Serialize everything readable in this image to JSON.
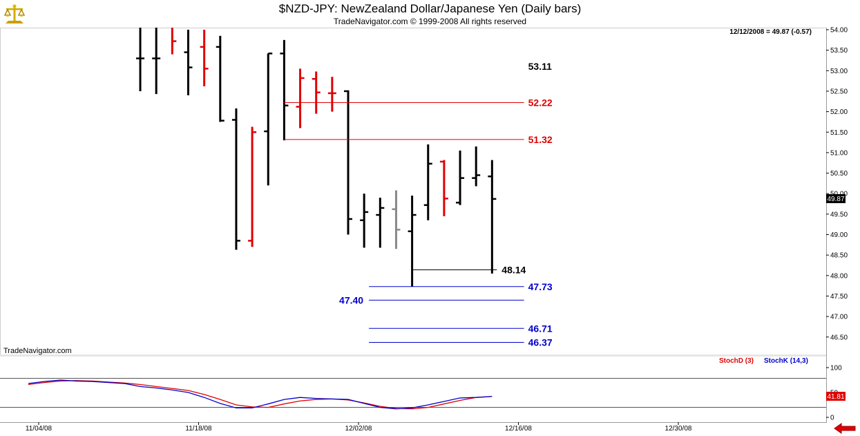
{
  "header": {
    "title": "$NZD-JPY:  NewZealand Dollar/Japanese Yen  (Daily bars)",
    "copyright": "TradeNavigator.com © 1999-2008 All rights reserved"
  },
  "info": {
    "readout": "12/12/2008 = 49.87 (-0.57)"
  },
  "watermark": "TradeNavigator.com",
  "colors": {
    "up": "#000000",
    "down": "#e00000",
    "neutral": "#888888",
    "level_red": "#e00000",
    "level_blue": "#0000cc"
  },
  "icons": {
    "logo": "scale-logo-icon",
    "nav": "red-left-arrow-icon"
  },
  "chart_data": [
    {
      "type": "ohlc",
      "title": "$NZD-JPY:  NewZealand Dollar/Japanese Yen  (Daily bars)",
      "ylim": [
        46.2,
        54.1
      ],
      "y_ticks": [
        "54.00",
        "53.50",
        "53.00",
        "52.50",
        "52.00",
        "51.50",
        "51.00",
        "50.50",
        "50.00",
        "49.50",
        "49.00",
        "48.50",
        "48.00",
        "47.50",
        "47.00",
        "46.50"
      ],
      "x_labels": [
        "11/04/08",
        "11/18/08",
        "12/02/08",
        "12/16/08",
        "12/30/08"
      ],
      "x_label_index": [
        0,
        10,
        20,
        30,
        40
      ],
      "last_price_label": "49.87",
      "bars": [
        {
          "i": 7,
          "o": 53.3,
          "h": 54.6,
          "l": 52.5,
          "c": 53.3,
          "color": "up"
        },
        {
          "i": 8,
          "o": 53.3,
          "h": 54.4,
          "l": 52.43,
          "c": 53.3,
          "color": "up"
        },
        {
          "i": 9,
          "o": 54.4,
          "h": 54.5,
          "l": 53.4,
          "c": 53.72,
          "color": "down"
        },
        {
          "i": 10,
          "o": 53.45,
          "h": 54.0,
          "l": 52.4,
          "c": 53.08,
          "color": "up"
        },
        {
          "i": 11,
          "o": 53.58,
          "h": 54.0,
          "l": 52.62,
          "c": 53.05,
          "color": "down"
        },
        {
          "i": 12,
          "o": 53.58,
          "h": 53.85,
          "l": 51.75,
          "c": 51.78,
          "color": "up"
        },
        {
          "i": 13,
          "o": 51.8,
          "h": 52.08,
          "l": 48.63,
          "c": 48.85,
          "color": "up"
        },
        {
          "i": 14,
          "o": 48.85,
          "h": 51.63,
          "l": 48.7,
          "c": 51.5,
          "color": "down"
        },
        {
          "i": 15,
          "o": 51.52,
          "h": 53.42,
          "l": 50.2,
          "c": 53.42,
          "color": "up"
        },
        {
          "i": 16,
          "o": 53.42,
          "h": 53.75,
          "l": 51.3,
          "c": 52.15,
          "color": "up"
        },
        {
          "i": 17,
          "o": 52.12,
          "h": 53.05,
          "l": 51.6,
          "c": 52.82,
          "color": "down"
        },
        {
          "i": 18,
          "o": 52.8,
          "h": 52.98,
          "l": 51.95,
          "c": 52.47,
          "color": "down"
        },
        {
          "i": 19,
          "o": 52.45,
          "h": 52.85,
          "l": 52.0,
          "c": 52.45,
          "color": "down"
        },
        {
          "i": 20,
          "o": 52.5,
          "h": 52.52,
          "l": 49.0,
          "c": 49.38,
          "color": "up"
        },
        {
          "i": 21,
          "o": 49.35,
          "h": 50.0,
          "l": 48.68,
          "c": 49.55,
          "color": "up"
        },
        {
          "i": 22,
          "o": 49.48,
          "h": 49.9,
          "l": 48.68,
          "c": 49.65,
          "color": "up"
        },
        {
          "i": 23,
          "o": 49.62,
          "h": 50.08,
          "l": 48.65,
          "c": 49.12,
          "color": "neutral"
        },
        {
          "i": 24,
          "o": 49.08,
          "h": 49.95,
          "l": 47.73,
          "c": 49.48,
          "color": "up"
        },
        {
          "i": 25,
          "o": 49.72,
          "h": 51.2,
          "l": 49.35,
          "c": 50.73,
          "color": "up"
        },
        {
          "i": 26,
          "o": 50.78,
          "h": 50.82,
          "l": 49.45,
          "c": 49.88,
          "color": "down"
        },
        {
          "i": 27,
          "o": 49.78,
          "h": 51.05,
          "l": 49.72,
          "c": 50.38,
          "color": "up"
        },
        {
          "i": 28,
          "o": 50.38,
          "h": 51.15,
          "l": 50.18,
          "c": 50.45,
          "color": "up"
        },
        {
          "i": 29,
          "o": 50.42,
          "h": 50.82,
          "l": 48.05,
          "c": 49.87,
          "color": "up"
        }
      ],
      "levels": [
        {
          "value": 53.11,
          "label": "53.11",
          "color": "up",
          "line": false,
          "x1": null,
          "x2": null,
          "label_side": "right"
        },
        {
          "value": 52.22,
          "label": "52.22",
          "color": "level_red",
          "line": true,
          "x1": 16,
          "x2": 31,
          "label_side": "right"
        },
        {
          "value": 51.32,
          "label": "51.32",
          "color": "level_red",
          "line": true,
          "x1": 16,
          "x2": 31,
          "label_side": "right"
        },
        {
          "value": 48.14,
          "label": "48.14",
          "color": "up",
          "line": true,
          "x1": 24,
          "x2": 29.3,
          "label_side": "right_near"
        },
        {
          "value": 47.73,
          "label": "47.73",
          "color": "level_blue",
          "line": true,
          "x1": 21.3,
          "x2": 31,
          "label_side": "right"
        },
        {
          "value": 47.4,
          "label": "47.40",
          "color": "level_blue",
          "line": true,
          "x1": 21.3,
          "x2": 31,
          "label_side": "left"
        },
        {
          "value": 46.71,
          "label": "46.71",
          "color": "level_blue",
          "line": true,
          "x1": 21.3,
          "x2": 31,
          "label_side": "right"
        },
        {
          "value": 46.37,
          "label": "46.37",
          "color": "level_blue",
          "line": true,
          "x1": 21.3,
          "x2": 31,
          "label_side": "right"
        }
      ]
    },
    {
      "type": "line",
      "legend": [
        {
          "name": "StochD (3)",
          "color": "#e00000"
        },
        {
          "name": "StochK (14,3)",
          "color": "#0000cc"
        }
      ],
      "ylim": [
        0,
        105
      ],
      "y_ticks": [
        "100",
        "50",
        "0"
      ],
      "last_value_label": "41.81",
      "x": [
        0,
        1,
        2,
        3,
        4,
        5,
        6,
        7,
        8,
        9,
        10,
        11,
        12,
        13,
        14,
        15,
        16,
        17,
        18,
        19,
        20,
        21,
        22,
        23,
        24,
        25,
        26,
        27,
        28,
        29
      ],
      "series": [
        {
          "name": "StochD (3)",
          "color": "#e00000",
          "values": [
            66,
            70,
            73,
            74,
            73,
            71,
            69,
            66,
            62,
            58,
            54,
            46,
            36,
            25,
            21,
            20,
            27,
            33,
            36,
            37,
            35,
            29,
            22,
            18,
            17,
            20,
            27,
            34,
            40,
            42
          ]
        },
        {
          "name": "StochK (14,3)",
          "color": "#0000cc",
          "values": [
            68,
            72,
            75,
            73,
            72,
            70,
            68,
            62,
            59,
            55,
            50,
            40,
            28,
            19,
            19,
            27,
            36,
            40,
            38,
            37,
            36,
            28,
            20,
            17,
            19,
            25,
            32,
            39,
            40,
            42
          ]
        }
      ]
    }
  ]
}
